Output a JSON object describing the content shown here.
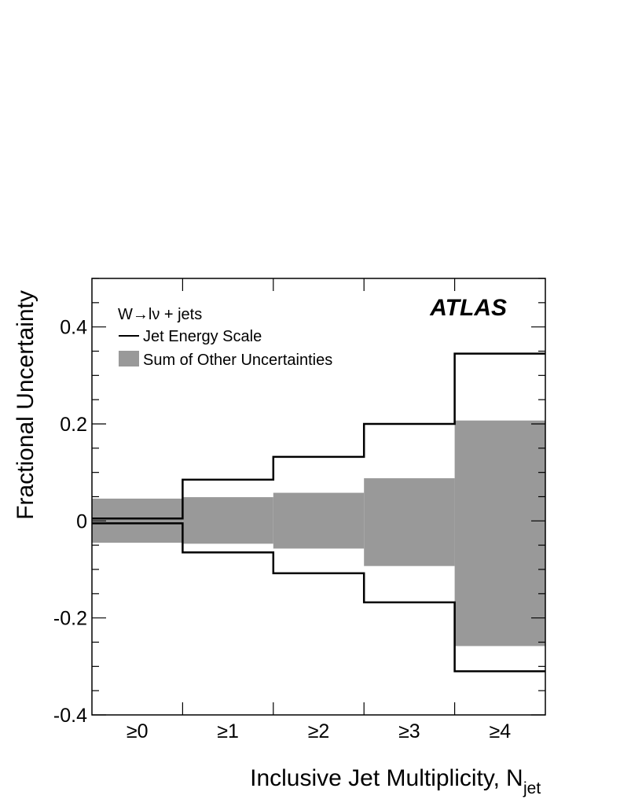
{
  "chart_data": {
    "type": "bar",
    "title": "",
    "label": "ATLAS",
    "process": "W→lν + jets",
    "xlabel": "Inclusive Jet Multiplicity,",
    "xlabel_symbol": "N",
    "xlabel_subscript": "jet",
    "ylabel": "Fractional Uncertainty",
    "ylim": [
      -0.4,
      0.5
    ],
    "yticks": [
      -0.4,
      -0.2,
      0,
      0.2,
      0.4
    ],
    "ytick_labels": [
      "-0.4",
      "-0.2",
      "0",
      "0.2",
      "0.4"
    ],
    "categories": [
      "≥0",
      "≥1",
      "≥2",
      "≥3",
      "≥4"
    ],
    "legend_position": "top-left",
    "series": [
      {
        "name": "Jet Energy Scale",
        "style": "line",
        "color": "#000000",
        "upper": [
          0.005,
          0.085,
          0.132,
          0.2,
          0.345
        ],
        "lower": [
          -0.005,
          -0.065,
          -0.108,
          -0.168,
          -0.31
        ]
      },
      {
        "name": "Sum of Other Uncertainties",
        "style": "band",
        "color": "#999999",
        "upper": [
          0.046,
          0.049,
          0.058,
          0.088,
          0.207
        ],
        "lower": [
          -0.045,
          -0.047,
          -0.057,
          -0.093,
          -0.258
        ]
      }
    ]
  }
}
